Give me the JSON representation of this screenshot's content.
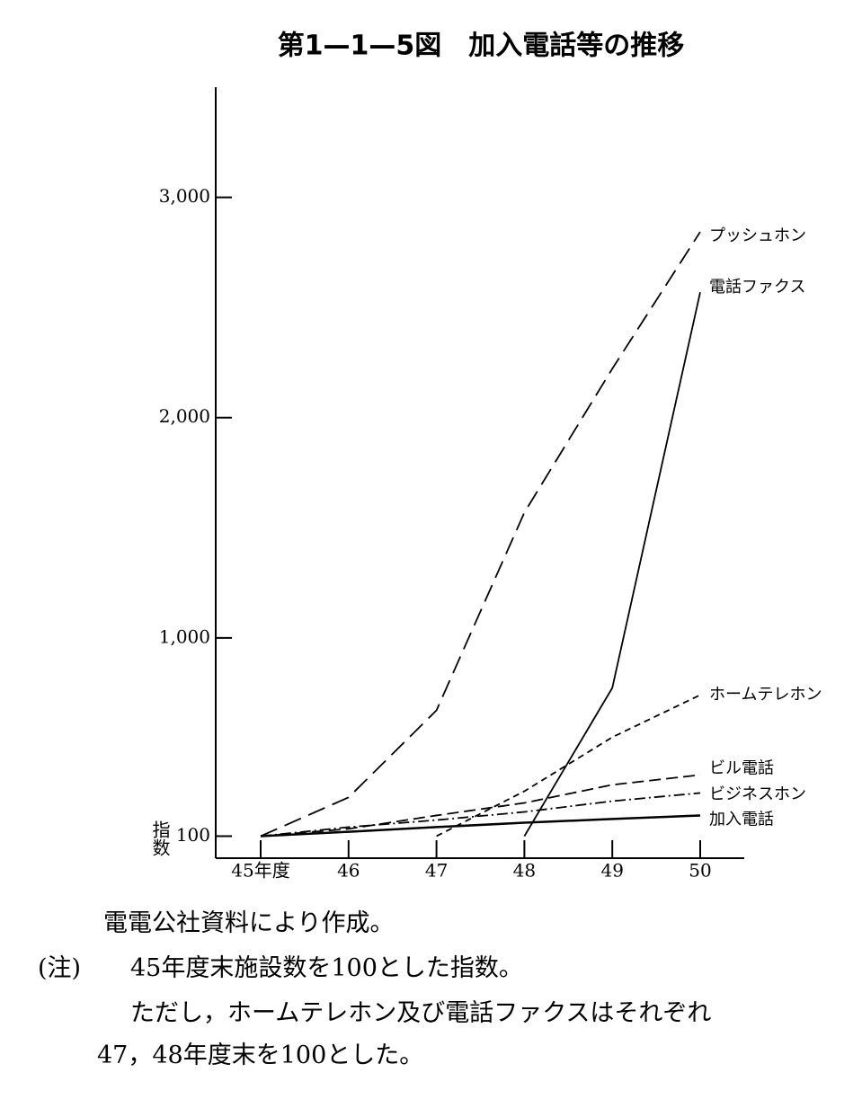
{
  "chart_data": {
    "type": "line",
    "title": "第1—1—5図　加入電話等の推移",
    "y_label": "指数",
    "categories": [
      "45年度",
      "46",
      "47",
      "48",
      "49",
      "50"
    ],
    "ylim": [
      0,
      3500
    ],
    "yticks": [
      100,
      {
        "value": 1000,
        "label": "1,000"
      },
      {
        "value": 2000,
        "label": "2,000"
      },
      {
        "value": 3000,
        "label": "3,000"
      }
    ],
    "series": [
      {
        "name": "プッシュホン",
        "color": "#000000",
        "dash": "20 9",
        "values": [
          100,
          276,
          671,
          1569,
          2222,
          2843
        ]
      },
      {
        "name": "電話ファクス",
        "color": "#000000",
        "dash": "none",
        "values": [
          null,
          null,
          null,
          100,
          773,
          2569
        ]
      },
      {
        "name": "ホームテレホン",
        "color": "#000000",
        "dash": "7 5",
        "values": [
          null,
          null,
          100,
          304,
          549,
          741
        ]
      },
      {
        "name": "ビル電話",
        "color": "#000000",
        "dash": "13 6",
        "values": [
          100,
          133,
          194,
          251,
          333,
          378
        ]
      },
      {
        "name": "ビジネスホン",
        "color": "#000000",
        "dash": "12 4 2 4",
        "values": [
          100,
          141,
          173,
          210,
          259,
          296
        ]
      },
      {
        "name": "加入電話",
        "color": "#000000",
        "dash": "none",
        "values": [
          100,
          120,
          141,
          161,
          178,
          194
        ]
      }
    ],
    "source": "電電公社資料により作成。",
    "note_mark": "(注)",
    "notes": [
      "45年度末施設数を100とした指数。",
      "ただし，ホームテレホン及び電話ファクスはそれぞれ",
      "47，48年度末を100とした。"
    ]
  }
}
